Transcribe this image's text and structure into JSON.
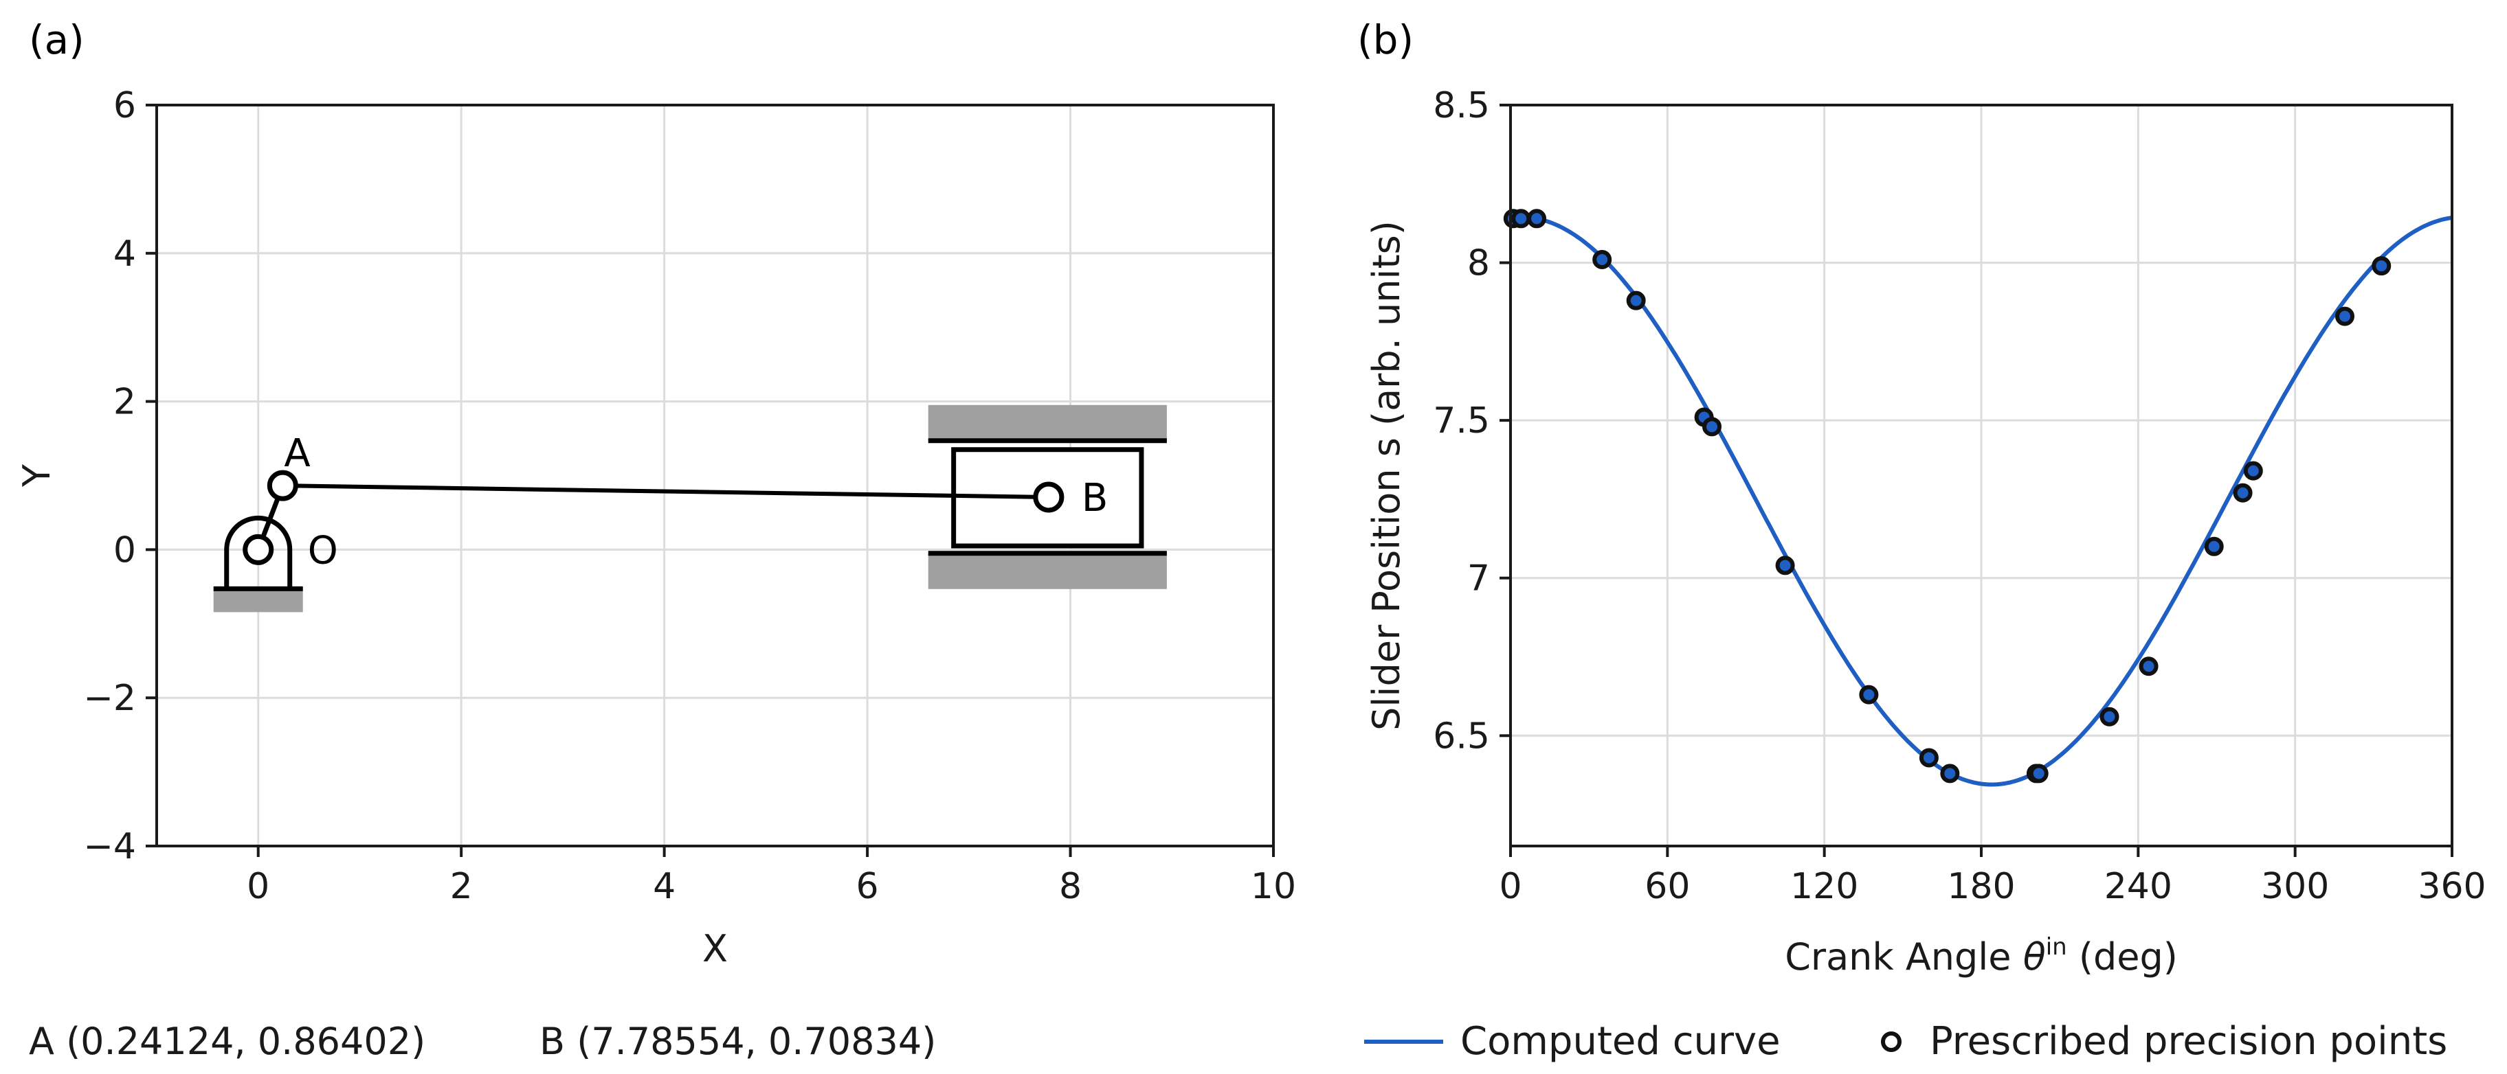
{
  "colors": {
    "curve": "#1f5fc4",
    "grid": "#dcdcdc",
    "ground": "#a0a0a0",
    "axis": "#1a1a1a",
    "point_fill": "#1f5fc4"
  },
  "chart_data": [
    {
      "panel": "(a)",
      "type": "scatter",
      "xlabel": "X",
      "ylabel": "Y",
      "xlim": [
        -1,
        10
      ],
      "ylim": [
        -4,
        6
      ],
      "xticks": [
        0,
        2,
        4,
        6,
        8,
        10
      ],
      "yticks": [
        -4,
        -2,
        0,
        2,
        4,
        6
      ],
      "xtick_labels": [
        "0",
        "2",
        "4",
        "6",
        "8",
        "10"
      ],
      "ytick_labels": [
        "−4",
        "−2",
        "0",
        "2",
        "4",
        "6"
      ],
      "grid": true,
      "joints": [
        {
          "name": "O",
          "x": 0.0,
          "y": 0.0
        },
        {
          "name": "A",
          "x": 0.24124,
          "y": 0.86402
        },
        {
          "name": "B",
          "x": 7.78554,
          "y": 0.70834
        }
      ],
      "slider_block": {
        "x_range": [
          6.85,
          8.7
        ],
        "y_range": [
          0.05,
          1.35
        ]
      },
      "guide_rails": {
        "x_range": [
          6.6,
          8.95
        ],
        "y_top": 1.47,
        "y_bottom": -0.05
      },
      "coord_readout": [
        "A (0.24124, 0.86402)",
        "B (7.78554, 0.70834)"
      ]
    },
    {
      "panel": "(b)",
      "type": "line",
      "xlabel_main": "Crank Angle ",
      "xlabel_sym": "θ",
      "xlabel_sup": "in",
      "xlabel_unit": " (deg)",
      "ylabel": "Slider Position s (arb. units)",
      "xlim": [
        0,
        360
      ],
      "ylim": [
        6.15,
        8.5
      ],
      "xticks": [
        0,
        60,
        120,
        180,
        240,
        300,
        360
      ],
      "yticks": [
        6.5,
        7,
        7.5,
        8,
        8.5
      ],
      "xtick_labels": [
        "0",
        "60",
        "120",
        "180",
        "240",
        "300",
        "360"
      ],
      "ytick_labels": [
        "6.5",
        "7",
        "7.5",
        "8",
        "8.5"
      ],
      "grid": true,
      "series": [
        {
          "name": "Computed curve",
          "style": "line",
          "model": {
            "amplitude": 0.9,
            "offset": 7.245,
            "phase_deg": 4
          }
        },
        {
          "name": "Prescribed precision points",
          "style": "markers",
          "points": [
            [
              1,
              8.14
            ],
            [
              4,
              8.14
            ],
            [
              10,
              8.14
            ],
            [
              35,
              8.01
            ],
            [
              48,
              7.88
            ],
            [
              74,
              7.51
            ],
            [
              77,
              7.48
            ],
            [
              105,
              7.04
            ],
            [
              137,
              6.63
            ],
            [
              160,
              6.43
            ],
            [
              168,
              6.38
            ],
            [
              201,
              6.38
            ],
            [
              202,
              6.38
            ],
            [
              229,
              6.56
            ],
            [
              244,
              6.72
            ],
            [
              269,
              7.1
            ],
            [
              280,
              7.27
            ],
            [
              284,
              7.34
            ],
            [
              319,
              7.83
            ],
            [
              333,
              7.99
            ]
          ]
        }
      ],
      "legend": [
        "Computed curve",
        "Prescribed precision points"
      ]
    }
  ]
}
